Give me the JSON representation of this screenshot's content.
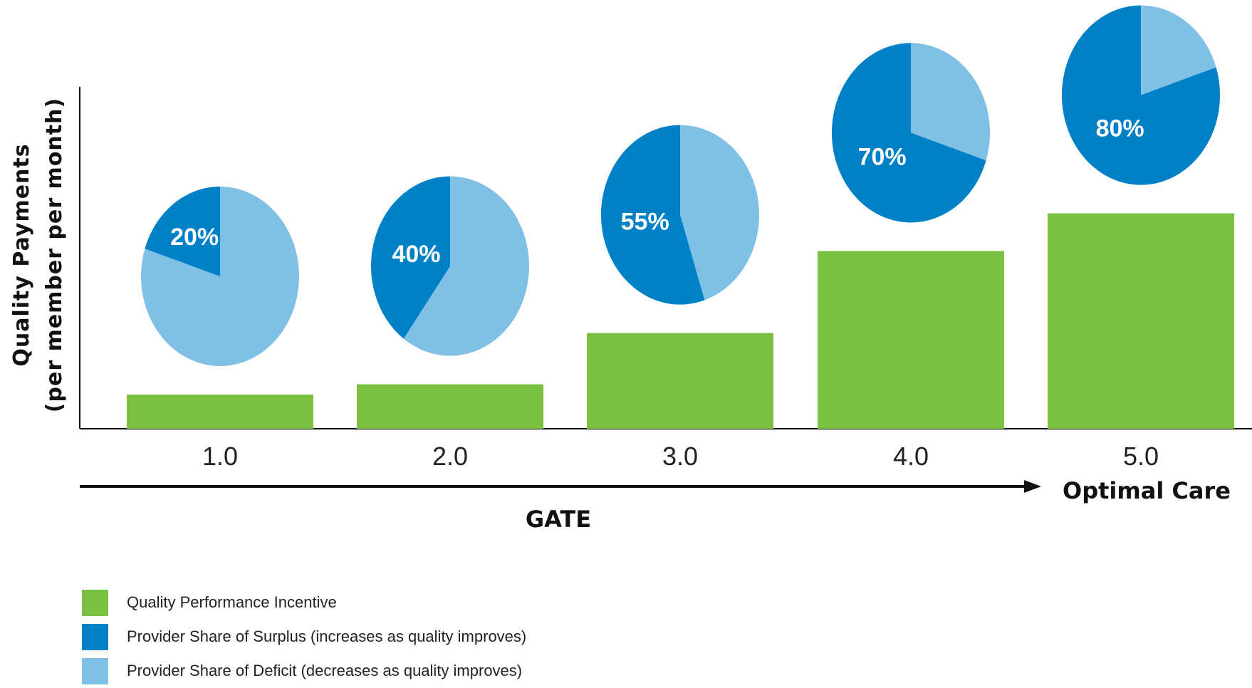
{
  "chart_data": {
    "type": "bar",
    "categories": [
      "1.0",
      "2.0",
      "3.0",
      "4.0",
      "5.0"
    ],
    "ylabel": [
      "Quality Payments",
      "(per member per month)"
    ],
    "xlabel": "GATE",
    "end_label": "Optimal Care",
    "grid": false,
    "series": [
      {
        "name": "Quality Performance Incentive",
        "values": [
          0.1,
          0.13,
          0.28,
          0.52,
          0.63
        ],
        "color": "#7ac143"
      }
    ],
    "pies": {
      "surplus_name": "Provider Share of Surplus (increases as quality improves)",
      "deficit_name": "Provider Share of Deficit (decreases as quality improves)",
      "surplus_color": "#0080c6",
      "deficit_color": "#80c0e4",
      "surplus_share": [
        20,
        40,
        55,
        70,
        80
      ],
      "labels": [
        "20%",
        "40%",
        "55%",
        "70%",
        "80%"
      ]
    }
  },
  "legend": [
    {
      "label": "Quality Performance Incentive",
      "color": "#7ac143"
    },
    {
      "label": "Provider Share of Surplus (increases as quality improves)",
      "color": "#0080c6"
    },
    {
      "label": "Provider Share of Deficit (decreases as quality improves)",
      "color": "#80c0e4"
    }
  ]
}
